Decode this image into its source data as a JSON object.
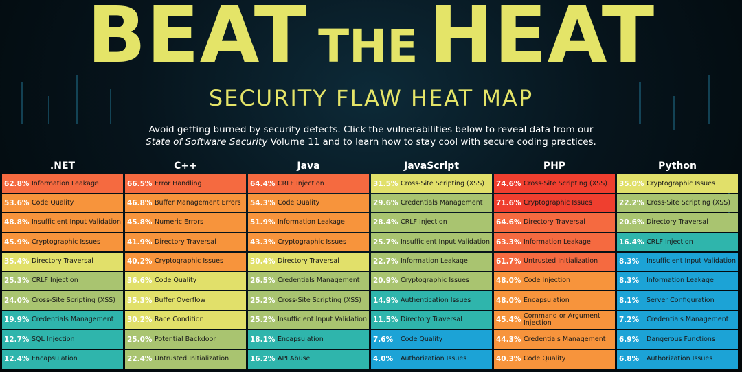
{
  "header": {
    "title_word1": "BEAT",
    "title_word2": "THE",
    "title_word3": "HEAT",
    "subtitle": "SECURITY FLAW HEAT MAP",
    "intro_part1": "Avoid getting burned by security defects. Click the vulnerabilities below to reveal data from our",
    "intro_italic": "State of Software Security",
    "intro_part2": "Volume 11 and to learn how to stay cool with secure coding practices."
  },
  "colors": {
    "red": "#ef3f2f",
    "orange_red": "#f56a40",
    "orange": "#f7943c",
    "yellow": "#e1e06a",
    "olive": "#a9c470",
    "teal": "#2fb5ac",
    "blue": "#1ca3d6"
  },
  "chart_data": {
    "type": "heatmap",
    "title": "SECURITY FLAW HEAT MAP",
    "columns": [
      {
        "language": ".NET",
        "rows": [
          {
            "pct": 62.8,
            "label": "Information Leakage",
            "color": "orange_red"
          },
          {
            "pct": 53.6,
            "label": "Code Quality",
            "color": "orange"
          },
          {
            "pct": 48.8,
            "label": "Insufficient Input Validation",
            "color": "orange"
          },
          {
            "pct": 45.9,
            "label": "Cryptographic Issues",
            "color": "orange"
          },
          {
            "pct": 35.4,
            "label": "Directory Traversal",
            "color": "yellow"
          },
          {
            "pct": 25.3,
            "label": "CRLF Injection",
            "color": "olive"
          },
          {
            "pct": 24.0,
            "label": "Cross-Site Scripting (XSS)",
            "color": "olive"
          },
          {
            "pct": 19.9,
            "label": "Credentials Management",
            "color": "teal"
          },
          {
            "pct": 12.7,
            "label": "SQL Injection",
            "color": "teal"
          },
          {
            "pct": 12.4,
            "label": "Encapsulation",
            "color": "teal"
          }
        ]
      },
      {
        "language": "C++",
        "rows": [
          {
            "pct": 66.5,
            "label": "Error Handling",
            "color": "orange_red"
          },
          {
            "pct": 46.8,
            "label": "Buffer Management Errors",
            "color": "orange"
          },
          {
            "pct": 45.8,
            "label": "Numeric Errors",
            "color": "orange"
          },
          {
            "pct": 41.9,
            "label": "Directory Traversal",
            "color": "orange"
          },
          {
            "pct": 40.2,
            "label": "Cryptographic Issues",
            "color": "orange"
          },
          {
            "pct": 36.6,
            "label": "Code Quality",
            "color": "yellow"
          },
          {
            "pct": 35.3,
            "label": "Buffer Overflow",
            "color": "yellow"
          },
          {
            "pct": 30.2,
            "label": "Race Condition",
            "color": "yellow"
          },
          {
            "pct": 25.0,
            "label": "Potential Backdoor",
            "color": "olive"
          },
          {
            "pct": 22.4,
            "label": "Untrusted Initialization",
            "color": "olive"
          }
        ]
      },
      {
        "language": "Java",
        "rows": [
          {
            "pct": 64.4,
            "label": "CRLF Injection",
            "color": "orange_red"
          },
          {
            "pct": 54.3,
            "label": "Code Quality",
            "color": "orange"
          },
          {
            "pct": 51.9,
            "label": "Information Leakage",
            "color": "orange"
          },
          {
            "pct": 43.3,
            "label": "Cryptographic Issues",
            "color": "orange"
          },
          {
            "pct": 30.4,
            "label": "Directory Traversal",
            "color": "yellow"
          },
          {
            "pct": 26.5,
            "label": "Credentials Management",
            "color": "olive"
          },
          {
            "pct": 25.2,
            "label": "Cross-Site Scripting (XSS)",
            "color": "olive"
          },
          {
            "pct": 25.2,
            "label": "Insufficient Input Validation",
            "color": "olive"
          },
          {
            "pct": 18.1,
            "label": "Encapsulation",
            "color": "teal"
          },
          {
            "pct": 16.2,
            "label": "API Abuse",
            "color": "teal"
          }
        ]
      },
      {
        "language": "JavaScript",
        "rows": [
          {
            "pct": 31.5,
            "label": "Cross-Site Scripting (XSS)",
            "color": "yellow"
          },
          {
            "pct": 29.6,
            "label": "Credentials Management",
            "color": "olive"
          },
          {
            "pct": 28.4,
            "label": "CRLF Injection",
            "color": "olive"
          },
          {
            "pct": 25.7,
            "label": "Insufficient Input Validation",
            "color": "olive"
          },
          {
            "pct": 22.7,
            "label": "Information Leakage",
            "color": "olive"
          },
          {
            "pct": 20.9,
            "label": "Cryptographic Issues",
            "color": "olive"
          },
          {
            "pct": 14.9,
            "label": "Authentication Issues",
            "color": "teal"
          },
          {
            "pct": 11.5,
            "label": "Directory Traversal",
            "color": "teal"
          },
          {
            "pct": 7.6,
            "label": "Code Quality",
            "color": "blue"
          },
          {
            "pct": 4.0,
            "label": "Authorization Issues",
            "color": "blue"
          }
        ]
      },
      {
        "language": "PHP",
        "rows": [
          {
            "pct": 74.6,
            "label": "Cross-Site Scripting (XSS)",
            "color": "red"
          },
          {
            "pct": 71.6,
            "label": "Cryptographic Issues",
            "color": "red"
          },
          {
            "pct": 64.6,
            "label": "Directory Traversal",
            "color": "orange_red"
          },
          {
            "pct": 63.3,
            "label": "Information Leakage",
            "color": "orange_red"
          },
          {
            "pct": 61.7,
            "label": "Untrusted Initialization",
            "color": "orange_red"
          },
          {
            "pct": 48.0,
            "label": "Code Injection",
            "color": "orange"
          },
          {
            "pct": 48.0,
            "label": "Encapsulation",
            "color": "orange"
          },
          {
            "pct": 45.4,
            "label": "Command or Argument Injection",
            "color": "orange"
          },
          {
            "pct": 44.3,
            "label": "Credentials Management",
            "color": "orange"
          },
          {
            "pct": 40.3,
            "label": "Code Quality",
            "color": "orange"
          }
        ]
      },
      {
        "language": "Python",
        "rows": [
          {
            "pct": 35.0,
            "label": "Cryptographic Issues",
            "color": "yellow"
          },
          {
            "pct": 22.2,
            "label": "Cross-Site Scripting (XSS)",
            "color": "olive"
          },
          {
            "pct": 20.6,
            "label": "Directory Traversal",
            "color": "olive"
          },
          {
            "pct": 16.4,
            "label": "CRLF Injection",
            "color": "teal"
          },
          {
            "pct": 8.3,
            "label": "Insufficient Input Validation",
            "color": "blue"
          },
          {
            "pct": 8.3,
            "label": "Information Leakage",
            "color": "blue"
          },
          {
            "pct": 8.1,
            "label": "Server Configuration",
            "color": "blue"
          },
          {
            "pct": 7.2,
            "label": "Credentials Management",
            "color": "blue"
          },
          {
            "pct": 6.9,
            "label": "Dangerous Functions",
            "color": "blue"
          },
          {
            "pct": 6.8,
            "label": "Authorization Issues",
            "color": "blue"
          }
        ]
      }
    ]
  }
}
